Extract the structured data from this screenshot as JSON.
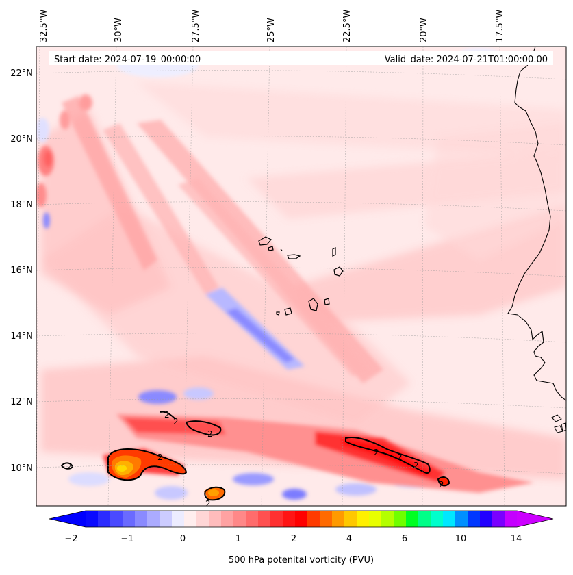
{
  "map": {
    "start_date_text": "Start date: 2024-07-19_00:00:00",
    "valid_date_text": "Valid_date: 2024-07-21T01:00:00.00",
    "lon_labels": [
      "32.5°W",
      "30°W",
      "27.5°W",
      "25°W",
      "22.5°W",
      "20°W",
      "17.5°W"
    ],
    "lat_labels": [
      "22°N",
      "20°N",
      "18°N",
      "16°N",
      "14°N",
      "12°N",
      "10°N"
    ],
    "contour_labels": [
      "2",
      "2",
      "2",
      "2",
      "2",
      "2",
      "2",
      "2",
      "2",
      "2"
    ]
  },
  "colorbar": {
    "title": "500 hPa potenital vorticity (PVU)",
    "tick_labels": [
      "−2",
      "−1",
      "0",
      "1",
      "2",
      "4",
      "6",
      "10",
      "14"
    ],
    "colors": [
      "#0a0aff",
      "#2b2bff",
      "#4a4aff",
      "#6a6aff",
      "#8a8aff",
      "#ababff",
      "#ccccff",
      "#ececff",
      "#ffeeee",
      "#ffd6d6",
      "#ffbcbc",
      "#ffa2a2",
      "#ff8888",
      "#ff6c6c",
      "#ff5050",
      "#ff3030",
      "#ff1414",
      "#ff0000",
      "#ff3b00",
      "#ff6a00",
      "#ff9a00",
      "#ffc800",
      "#fff000",
      "#e8ff00",
      "#b4ff00",
      "#70ff00",
      "#00ff22",
      "#00ff88",
      "#00ffcc",
      "#00e8ff",
      "#0090ff",
      "#0038ff",
      "#2200ff",
      "#7a00ff",
      "#c400ff"
    ],
    "under_color": "#0000ff",
    "over_color": "#cc00ff"
  }
}
